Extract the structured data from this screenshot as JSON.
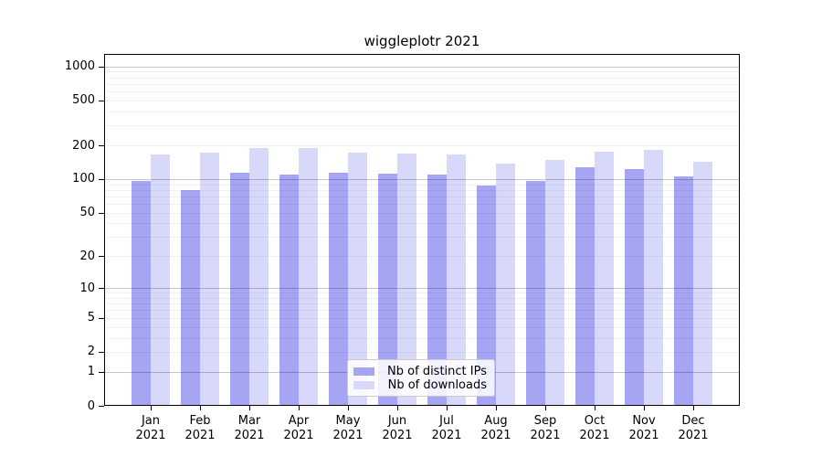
{
  "chart_data": {
    "type": "bar",
    "title": "wiggleplotr 2021",
    "x_year": "2021",
    "categories": [
      "Jan",
      "Feb",
      "Mar",
      "Apr",
      "May",
      "Jun",
      "Jul",
      "Aug",
      "Sep",
      "Oct",
      "Nov",
      "Dec"
    ],
    "series": [
      {
        "name": "Nb of distinct IPs",
        "color": "#a5a5f3",
        "values": [
          97,
          80,
          113,
          110,
          113,
          112,
          110,
          87,
          97,
          127,
          123,
          105
        ]
      },
      {
        "name": "Nb of downloads",
        "color": "#d8d8fa",
        "values": [
          166,
          173,
          190,
          190,
          173,
          170,
          166,
          138,
          148,
          174,
          183,
          144
        ]
      }
    ],
    "y_scale": "log1p",
    "y_ticks": [
      0,
      1,
      2,
      5,
      10,
      20,
      50,
      100,
      200,
      500,
      1000
    ],
    "y_major_grid": [
      1,
      10,
      100,
      1000
    ],
    "ylim": [
      0,
      1290
    ],
    "grid": true,
    "legend_position": "inside-bottom-center",
    "axis_color": "#000000",
    "background_color": "#ffffff"
  }
}
